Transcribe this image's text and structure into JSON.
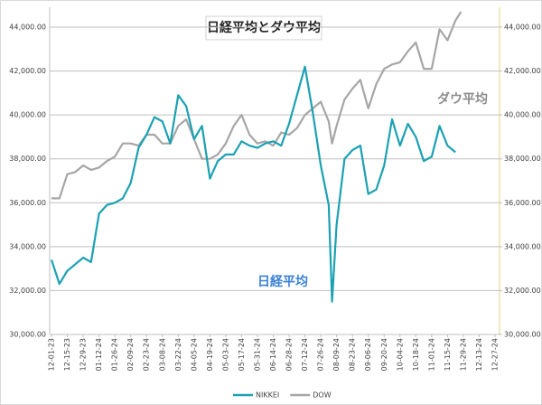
{
  "chart_data": {
    "type": "line",
    "title": "日経平均とダウ平均",
    "annotations": [
      {
        "text": "ダウ平均",
        "color": "#8c8c8c"
      },
      {
        "text": "日経平均",
        "color": "#3b82d6"
      }
    ],
    "x": [
      "12-01-23",
      "12-08-23",
      "12-15-23",
      "12-22-23",
      "12-29-23",
      "01-05-24",
      "01-12-24",
      "01-19-24",
      "01-26-24",
      "02-02-24",
      "02-09-24",
      "02-16-24",
      "02-23-24",
      "03-01-24",
      "03-08-24",
      "03-15-24",
      "03-22-24",
      "03-29-24",
      "04-05-24",
      "04-12-24",
      "04-19-24",
      "04-26-24",
      "05-03-24",
      "05-10-24",
      "05-17-24",
      "05-24-24",
      "05-31-24",
      "06-07-24",
      "06-14-24",
      "06-21-24",
      "06-28-24",
      "07-05-24",
      "07-12-24",
      "07-19-24",
      "07-26-24",
      "08-02-24",
      "08-05-24",
      "08-09-24",
      "08-16-24",
      "08-23-24",
      "08-30-24",
      "09-06-24",
      "09-13-24",
      "09-20-24",
      "09-27-24",
      "10-04-24",
      "10-11-24",
      "10-18-24",
      "10-25-24",
      "11-01-24",
      "11-08-24",
      "11-15-24",
      "11-22-24",
      "11-27-24"
    ],
    "series": [
      {
        "name": "NIKKEI",
        "color": "#1ba1b3",
        "values": [
          33400,
          32300,
          32900,
          33200,
          33500,
          33300,
          35500,
          35900,
          36000,
          36200,
          36900,
          38500,
          39100,
          39900,
          39700,
          38700,
          40900,
          40400,
          38900,
          39500,
          37100,
          37900,
          38200,
          38200,
          38800,
          38600,
          38500,
          38700,
          38800,
          38600,
          39600,
          40900,
          42200,
          40100,
          37700,
          35900,
          31500,
          35000,
          38000,
          38400,
          38600,
          36400,
          36600,
          37700,
          39800,
          38600,
          39600,
          39000,
          37900,
          38100,
          39500,
          38600,
          38300,
          null
        ]
      },
      {
        "name": "DOW",
        "color": "#a6a6a6",
        "axis": "y2",
        "values": [
          36200,
          36200,
          37300,
          37400,
          37700,
          37500,
          37600,
          37900,
          38100,
          38700,
          38700,
          38600,
          39100,
          39100,
          38700,
          38700,
          39500,
          39800,
          38900,
          38000,
          38000,
          38200,
          38700,
          39500,
          40000,
          39100,
          38700,
          38800,
          38600,
          39200,
          39100,
          39400,
          40000,
          40300,
          40600,
          39700,
          38700,
          39500,
          40700,
          41200,
          41600,
          40300,
          41400,
          42100,
          42300,
          42400,
          42900,
          43300,
          42100,
          42100,
          43900,
          43400,
          44300,
          44700
        ]
      }
    ],
    "xlim": [
      "12-01-23",
      "12-27-24"
    ],
    "xticks": [
      "12-01-23",
      "12-15-23",
      "12-29-23",
      "01-12-24",
      "01-26-24",
      "02-09-24",
      "02-23-24",
      "03-08-24",
      "03-22-24",
      "04-05-24",
      "04-19-24",
      "05-03-24",
      "05-17-24",
      "05-31-24",
      "06-14-24",
      "06-28-24",
      "07-12-24",
      "07-26-24",
      "08-09-24",
      "08-23-24",
      "09-06-24",
      "09-20-24",
      "10-04-24",
      "10-18-24",
      "11-01-24",
      "11-15-24",
      "11-29-24",
      "12-13-24",
      "12-27-24"
    ],
    "ylim": [
      30000,
      44000
    ],
    "yticks": [
      {
        "value": 30000,
        "label": "30,000.00"
      },
      {
        "value": 32000,
        "label": "32,000.00"
      },
      {
        "value": 34000,
        "label": "34,000.00"
      },
      {
        "value": 36000,
        "label": "36,000.00"
      },
      {
        "value": 38000,
        "label": "38,000.00"
      },
      {
        "value": 40000,
        "label": "40,000.00"
      },
      {
        "value": 42000,
        "label": "42,000.00"
      },
      {
        "value": 44000,
        "label": "44,000.00"
      }
    ],
    "y2lim": [
      30000,
      44000
    ],
    "y2ticks": [
      {
        "value": 30000,
        "label": "30,000.00"
      },
      {
        "value": 32000,
        "label": "32,000.00"
      },
      {
        "value": 34000,
        "label": "34,000.00"
      },
      {
        "value": 36000,
        "label": "36,000.00"
      },
      {
        "value": 38000,
        "label": "38,000.00"
      },
      {
        "value": 40000,
        "label": "40,000.00"
      },
      {
        "value": 42000,
        "label": "42,000.00"
      },
      {
        "value": 44000,
        "label": "44,000.00"
      }
    ],
    "grid": true,
    "legend": "bottom"
  }
}
